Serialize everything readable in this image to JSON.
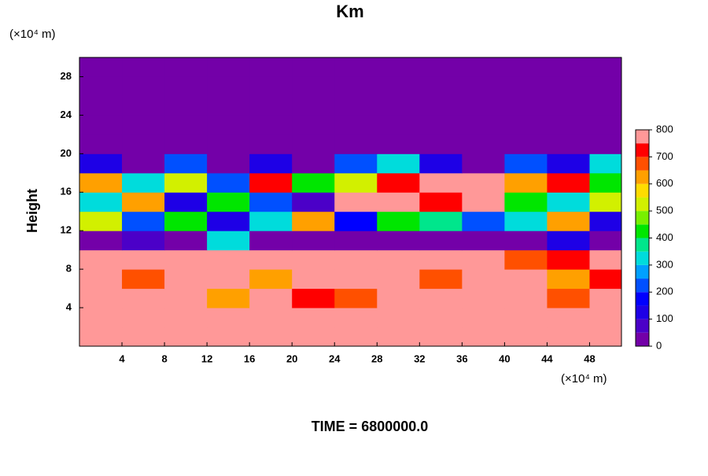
{
  "chart_data": {
    "type": "contour",
    "title": "Km",
    "y_label": "Height",
    "y_unit": "(×10⁴ m)",
    "x_unit": "(×10⁴ m)",
    "footer": "TIME = 6800000.0",
    "xlim": [
      0,
      51
    ],
    "ylim": [
      0,
      30
    ],
    "xticks": [
      4,
      8,
      12,
      16,
      20,
      24,
      28,
      32,
      36,
      40,
      44,
      48
    ],
    "yticks": [
      4,
      8,
      12,
      16,
      20,
      24,
      28
    ],
    "x": [
      2,
      6,
      10,
      14,
      18,
      22,
      26,
      30,
      34,
      38,
      42,
      46,
      50
    ],
    "y": [
      1,
      3,
      5,
      7,
      9,
      11,
      13,
      15,
      17,
      19,
      21,
      23,
      25,
      27,
      29
    ],
    "z": [
      [
        800,
        800,
        800,
        800,
        800,
        800,
        800,
        800,
        800,
        800,
        800,
        800,
        800
      ],
      [
        800,
        800,
        800,
        750,
        800,
        800,
        800,
        800,
        800,
        800,
        800,
        800,
        800
      ],
      [
        800,
        800,
        800,
        600,
        800,
        700,
        650,
        800,
        800,
        800,
        800,
        650,
        800
      ],
      [
        750,
        650,
        800,
        800,
        600,
        800,
        800,
        800,
        650,
        800,
        800,
        600,
        700
      ],
      [
        800,
        800,
        800,
        800,
        800,
        800,
        800,
        800,
        800,
        800,
        650,
        700,
        800
      ],
      [
        0,
        50,
        0,
        300,
        0,
        0,
        0,
        0,
        0,
        0,
        0,
        100,
        0
      ],
      [
        500,
        200,
        400,
        100,
        300,
        600,
        150,
        400,
        350,
        200,
        300,
        600,
        100
      ],
      [
        300,
        600,
        100,
        400,
        200,
        50,
        800,
        800,
        700,
        800,
        400,
        300,
        500
      ],
      [
        600,
        300,
        500,
        200,
        700,
        400,
        500,
        700,
        800,
        800,
        600,
        700,
        400
      ],
      [
        100,
        0,
        200,
        0,
        100,
        0,
        200,
        300,
        100,
        0,
        200,
        100,
        300
      ],
      [
        0,
        0,
        0,
        0,
        0,
        0,
        0,
        0,
        0,
        0,
        0,
        0,
        0
      ],
      [
        0,
        0,
        0,
        0,
        0,
        0,
        0,
        0,
        0,
        0,
        0,
        0,
        0
      ],
      [
        0,
        0,
        0,
        0,
        0,
        0,
        0,
        0,
        0,
        0,
        0,
        0,
        0
      ],
      [
        0,
        0,
        0,
        0,
        0,
        0,
        0,
        0,
        0,
        0,
        0,
        0,
        0
      ],
      [
        0,
        0,
        0,
        0,
        0,
        0,
        0,
        0,
        0,
        0,
        0,
        0,
        0
      ]
    ],
    "levels": [
      0,
      50,
      100,
      150,
      200,
      250,
      300,
      350,
      400,
      450,
      500,
      550,
      600,
      650,
      700,
      750,
      800
    ],
    "colors": [
      "#7300a8",
      "#4b00c8",
      "#1e00e6",
      "#0000ff",
      "#0050ff",
      "#00a0ff",
      "#00dcdc",
      "#00e68c",
      "#00e600",
      "#78f000",
      "#d2f000",
      "#ffdc00",
      "#ffa000",
      "#ff5000",
      "#ff0000",
      "#ff9898"
    ],
    "cticks": [
      0,
      100,
      200,
      300,
      400,
      500,
      600,
      700,
      800
    ]
  }
}
